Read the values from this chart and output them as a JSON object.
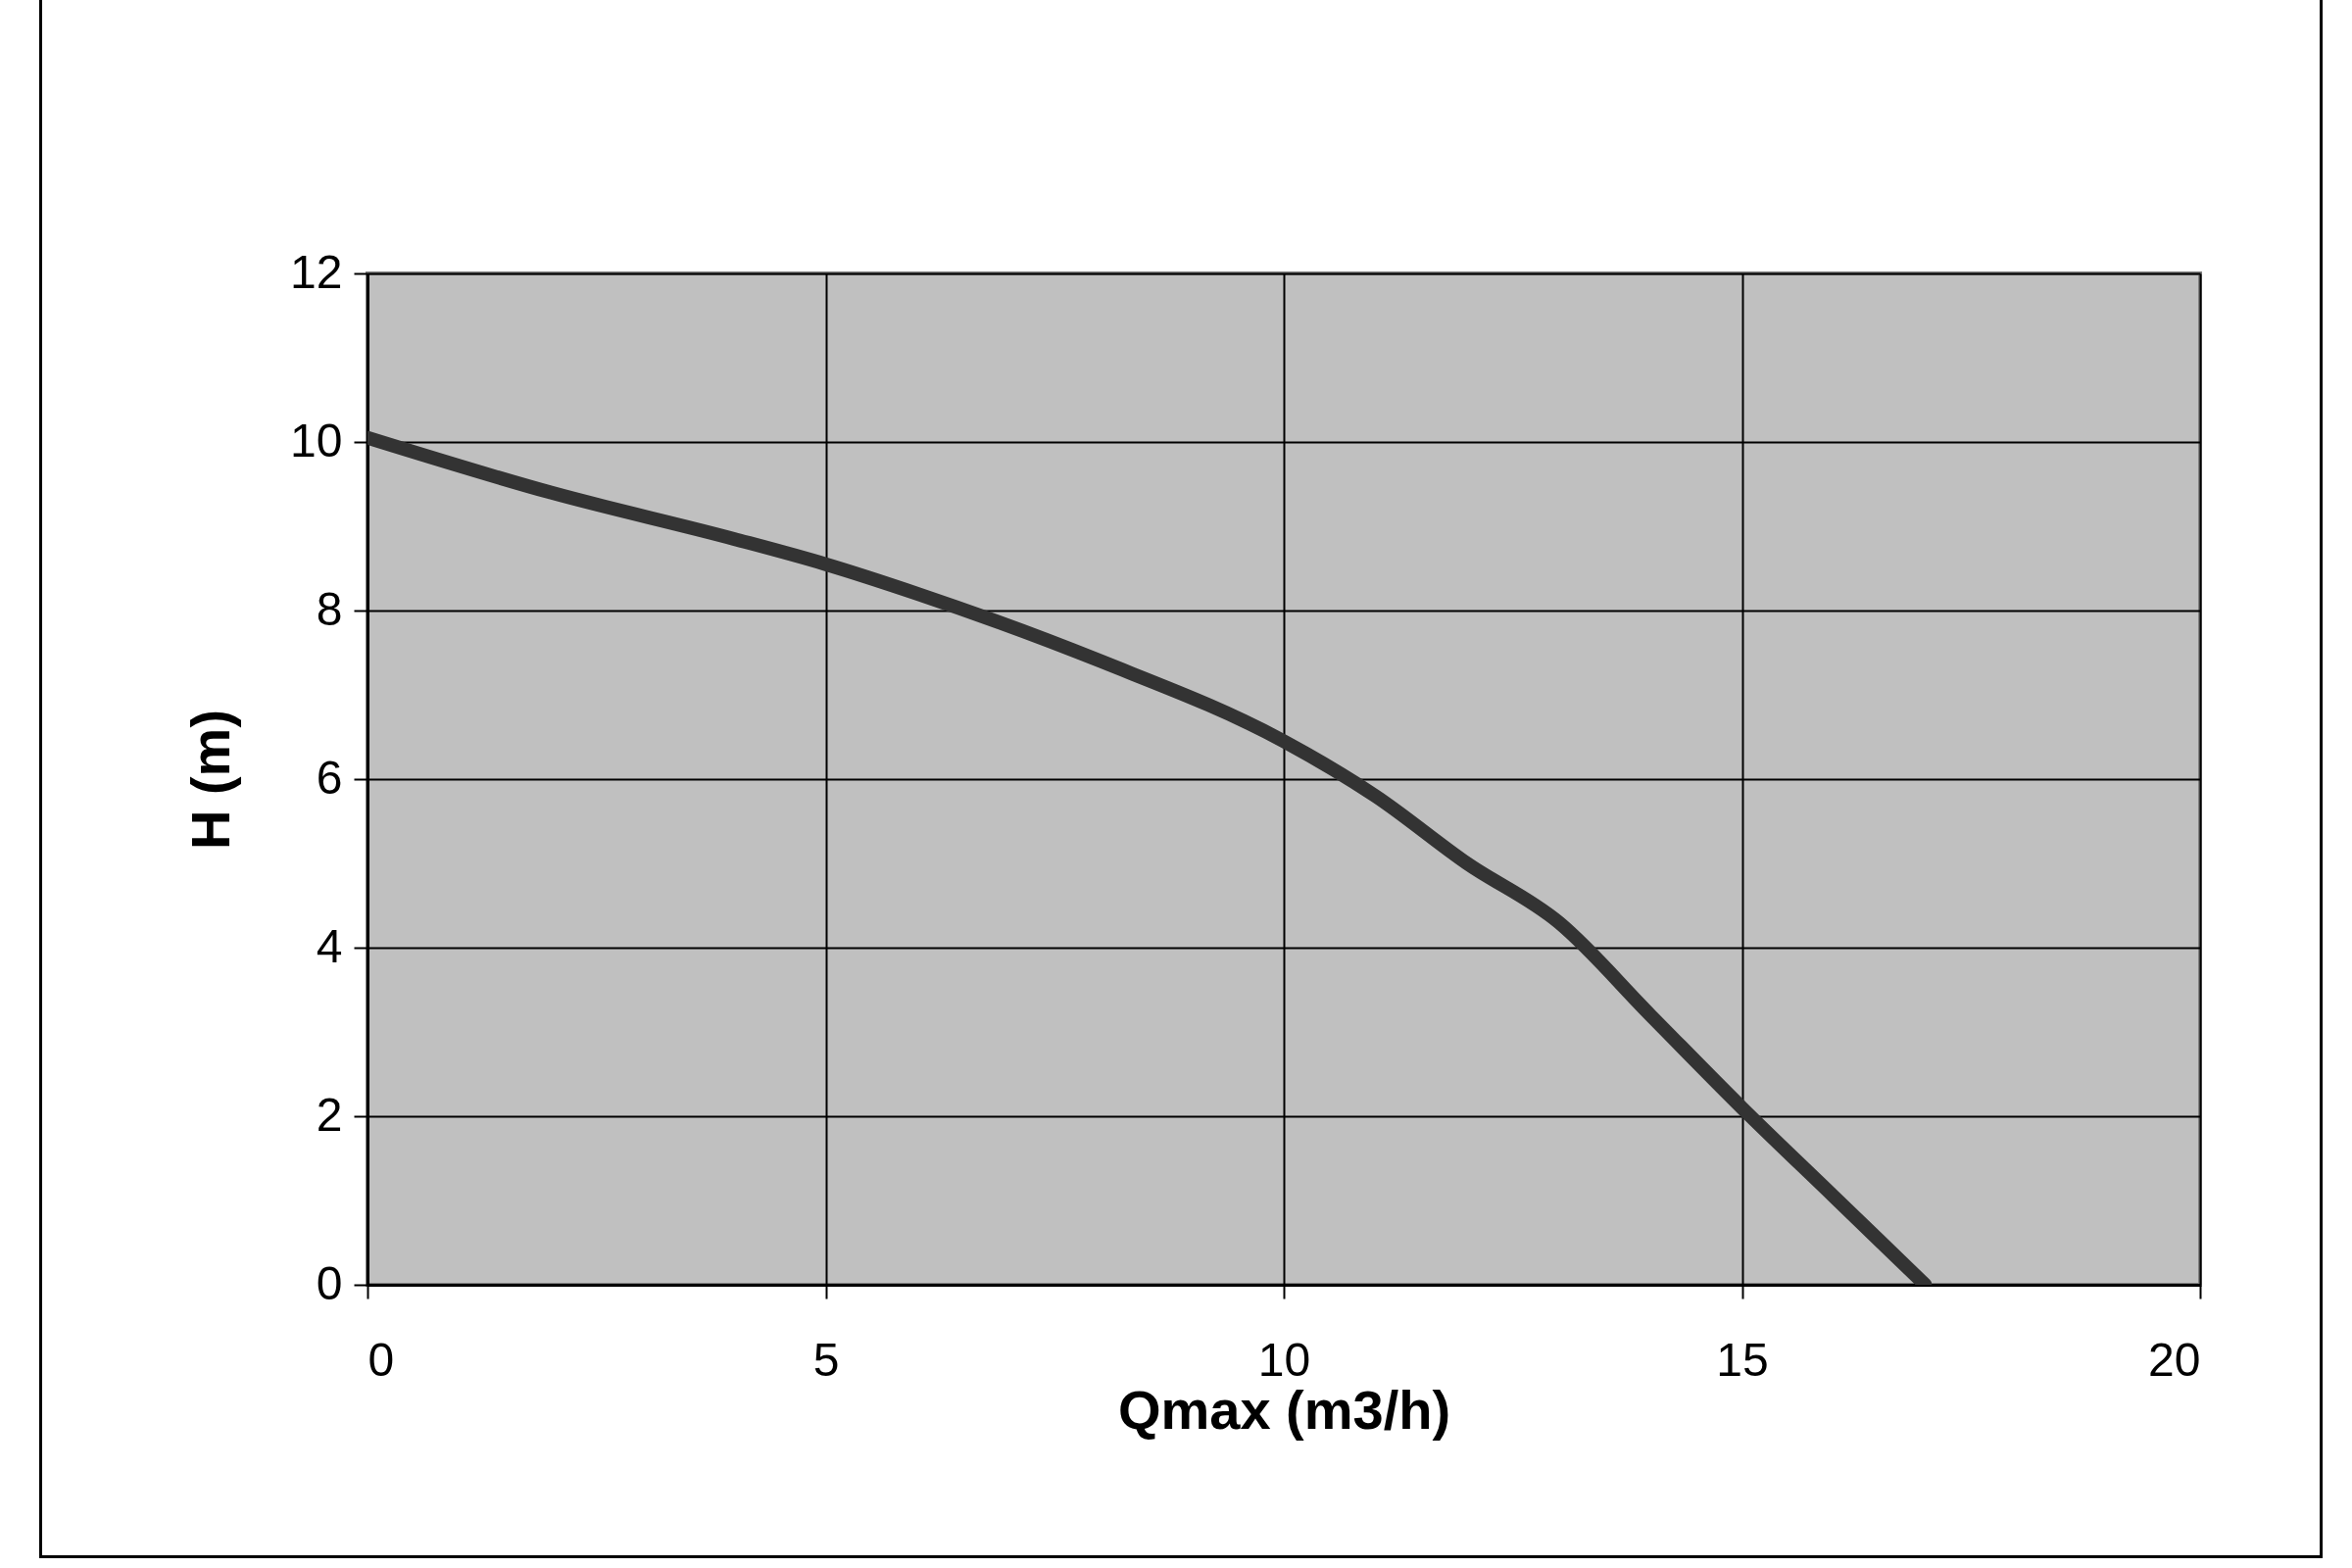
{
  "chart_data": {
    "type": "line",
    "xlabel": "Qmax (m3/h)",
    "ylabel": "H (m)",
    "x": [
      0,
      2,
      4,
      5,
      6,
      8,
      10,
      11,
      12,
      13,
      14,
      15,
      16,
      17
    ],
    "series": [
      {
        "color": "#333333",
        "values": [
          10.05,
          9.4,
          8.85,
          8.55,
          8.2,
          7.4,
          6.45,
          5.8,
          5.0,
          4.3,
          3.2,
          2.1,
          1.05,
          0
        ]
      }
    ],
    "xlim": [
      0,
      20
    ],
    "xticks": [
      0,
      5,
      10,
      15,
      20
    ],
    "ylim": [
      0,
      12
    ],
    "yticks": [
      0,
      2,
      4,
      6,
      8,
      10,
      12
    ],
    "grid": true,
    "marker": "none",
    "line_style": "solid"
  }
}
